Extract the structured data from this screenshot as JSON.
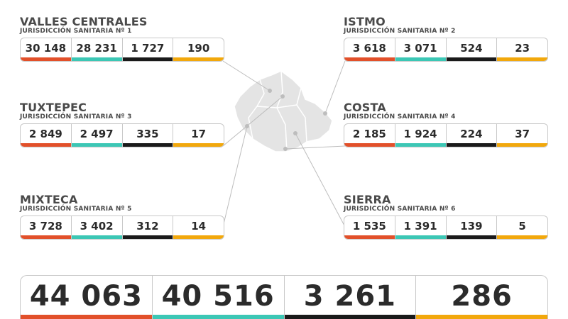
{
  "colors": {
    "cases": "#e2502a",
    "recovered": "#3cc7b5",
    "active": "#1a1a1a",
    "deaths": "#f2a80c",
    "map_fill": "#e4e4e4",
    "map_line": "#ffffff",
    "connector": "#bdbdbd"
  },
  "regions": [
    {
      "name": "VALLES CENTRALES",
      "sub": "JURISDICCIÓN SANITARIA Nº 1",
      "values": [
        "30 148",
        "28 231",
        "1 727",
        "190"
      ]
    },
    {
      "name": "ISTMO",
      "sub": "JURISDICCIÓN SANITARIA Nº 2",
      "values": [
        "3 618",
        "3 071",
        "524",
        "23"
      ]
    },
    {
      "name": "TUXTEPEC",
      "sub": "JURISDICCIÓN SANITARIA Nº 3",
      "values": [
        "2 849",
        "2 497",
        "335",
        "17"
      ]
    },
    {
      "name": "COSTA",
      "sub": "JURISDICCIÓN SANITARIA Nº 4",
      "values": [
        "2 185",
        "1 924",
        "224",
        "37"
      ]
    },
    {
      "name": "MIXTECA",
      "sub": "JURISDICCIÓN SANITARIA Nº 5",
      "values": [
        "3 728",
        "3 402",
        "312",
        "14"
      ]
    },
    {
      "name": "SIERRA",
      "sub": "JURISDICCIÓN SANITARIA Nº 6",
      "values": [
        "1 535",
        "1 391",
        "139",
        "5"
      ]
    }
  ],
  "totals": [
    "44 063",
    "40 516",
    "3 261",
    "286"
  ]
}
